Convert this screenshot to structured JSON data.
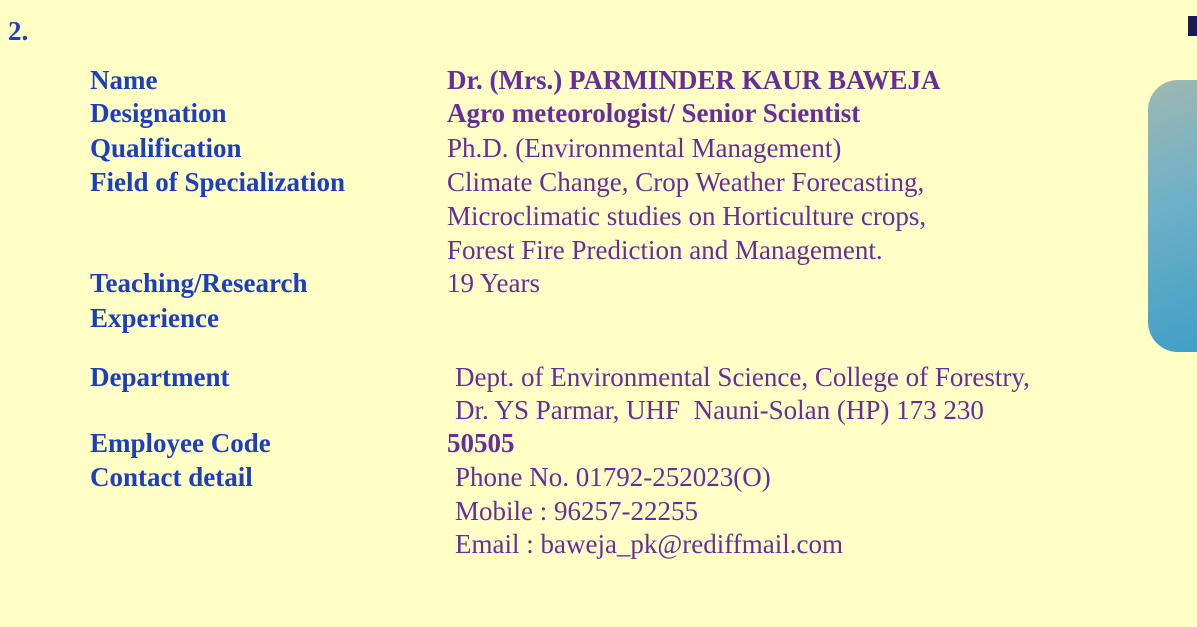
{
  "section_number": "2.",
  "fields": [
    {
      "label": [
        "Name"
      ],
      "value": [
        "Dr. (Mrs.) PARMINDER KAUR BAWEJA"
      ]
    },
    {
      "label": [
        "Designation"
      ],
      "value": [
        "Agro meteorologist/ Senior Scientist"
      ]
    },
    {
      "label": [
        "Qualification"
      ],
      "value": [
        "Ph.D. (Environmental Management)"
      ]
    },
    {
      "label": [
        "Field of Specialization"
      ],
      "value": [
        "Climate Change, Crop Weather Forecasting,",
        "Microclimatic studies on Horticulture crops,",
        "Forest Fire Prediction and Management."
      ]
    },
    {
      "label": [
        "Teaching/Research",
        "Experience"
      ],
      "value": [
        "19 Years"
      ]
    },
    {
      "label": [
        "Department"
      ],
      "value": [
        "Dept. of Environmental Science, College of Forestry,",
        "Dr. YS Parmar, UHF  Nauni-Solan (HP) 173 230"
      ]
    },
    {
      "label": [
        "Employee Code"
      ],
      "value": [
        "50505"
      ]
    },
    {
      "label": [
        "Contact detail"
      ],
      "value": [
        "Phone No. 01792-252023(O)",
        "Mobile : 96257-22255",
        "Email : baweja_pk@rediffmail.com"
      ]
    }
  ]
}
